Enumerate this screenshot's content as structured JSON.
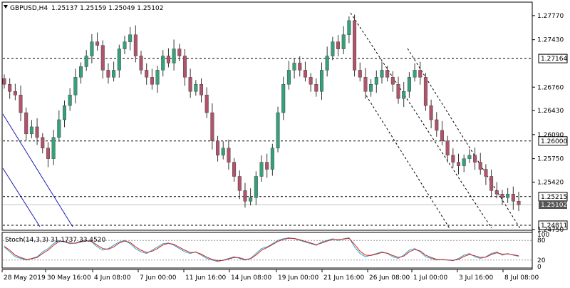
{
  "header": {
    "symbol_timeframe": "GBPUSD,H4",
    "ohlc": "1.25137 1.25159 1.25049 1.25102"
  },
  "stoch": {
    "label": "Stoch(14,3,3) 31.1737 33.4520"
  },
  "colors": {
    "bull": "#36a07a",
    "bear": "#b0546a",
    "wick": "#333333",
    "bgLine": "#000000",
    "stochMain": "#2aa7c9",
    "stochSignal": "#d62020",
    "channel": "#1b1fb3"
  },
  "chart_data": {
    "type": "candlestick",
    "ylim": [
      1.2475,
      1.2795
    ],
    "y_ticks": [
      "1.27770",
      "1.27430",
      "1.26760",
      "1.26430",
      "1.26090",
      "1.25750",
      "1.25420",
      "1.24750"
    ],
    "x_ticks": [
      "28 May 2019",
      "30 May 16:00",
      "4 Jun 08:00",
      "7 Jun 00:00",
      "11 Jun 16:00",
      "14 Jun 08:00",
      "19 Jun 00:00",
      "21 Jun 16:00",
      "26 Jun 08:00",
      "1 Jul 00:00",
      "3 Jul 16:00",
      "8 Jul 08:00"
    ],
    "horizontal_levels": [
      {
        "value": 1.27164,
        "label": "1.27164"
      },
      {
        "value": 1.26,
        "label": "1.26000"
      },
      {
        "value": 1.25215,
        "label": "1.25215"
      },
      {
        "value": 1.24811,
        "label": "1.24811"
      }
    ],
    "current_price": {
      "value": 1.25102,
      "label": "1.25102"
    },
    "stoch_levels": {
      "upper": 80,
      "lower": 20,
      "upper_label": "80",
      "lower_label": "20",
      "top_label": "100",
      "bottom_label": "0"
    },
    "closes": [
      1.268,
      1.267,
      1.2665,
      1.264,
      1.261,
      1.262,
      1.2605,
      1.259,
      1.2575,
      1.2605,
      1.263,
      1.265,
      1.2665,
      1.269,
      1.2705,
      1.272,
      1.274,
      1.2735,
      1.27,
      1.269,
      1.27,
      1.273,
      1.274,
      1.275,
      1.272,
      1.27,
      1.269,
      1.268,
      1.27,
      1.272,
      1.271,
      1.273,
      1.272,
      1.269,
      1.267,
      1.268,
      1.2665,
      1.264,
      1.26,
      1.258,
      1.259,
      1.257,
      1.255,
      1.253,
      1.2515,
      1.252,
      1.255,
      1.257,
      1.256,
      1.259,
      1.264,
      1.268,
      1.27,
      1.271,
      1.27,
      1.269,
      1.268,
      1.267,
      1.27,
      1.272,
      1.274,
      1.273,
      1.275,
      1.277,
      1.27,
      1.269,
      1.267,
      1.268,
      1.269,
      1.27,
      1.269,
      1.268,
      1.266,
      1.267,
      1.269,
      1.27,
      1.269,
      1.265,
      1.263,
      1.2615,
      1.26,
      1.258,
      1.257,
      1.2565,
      1.2575,
      1.258,
      1.257,
      1.256,
      1.255,
      1.253,
      1.2525,
      1.252,
      1.2525,
      1.2515,
      1.251
    ],
    "stoch_main": [
      60,
      45,
      30,
      25,
      20,
      25,
      30,
      45,
      55,
      70,
      80,
      75,
      70,
      72,
      78,
      80,
      75,
      60,
      50,
      55,
      65,
      75,
      80,
      70,
      55,
      45,
      40,
      50,
      60,
      70,
      72,
      65,
      55,
      45,
      40,
      45,
      35,
      25,
      20,
      15,
      20,
      25,
      30,
      25,
      20,
      25,
      40,
      55,
      60,
      70,
      80,
      85,
      88,
      85,
      80,
      75,
      70,
      65,
      75,
      80,
      85,
      80,
      85,
      88,
      60,
      40,
      30,
      35,
      40,
      45,
      40,
      30,
      25,
      35,
      50,
      55,
      45,
      30,
      25,
      20,
      22,
      20,
      18,
      25,
      35,
      40,
      30,
      25,
      30,
      40,
      45,
      35,
      40,
      35,
      31
    ],
    "stoch_signal": [
      62,
      50,
      35,
      28,
      22,
      24,
      28,
      40,
      50,
      65,
      76,
      77,
      72,
      71,
      75,
      79,
      77,
      65,
      55,
      53,
      60,
      72,
      78,
      74,
      60,
      50,
      43,
      47,
      55,
      66,
      71,
      68,
      59,
      50,
      43,
      44,
      38,
      29,
      22,
      18,
      19,
      23,
      28,
      27,
      22,
      24,
      35,
      50,
      58,
      67,
      77,
      83,
      86,
      86,
      82,
      77,
      72,
      67,
      72,
      78,
      83,
      82,
      84,
      86,
      68,
      47,
      35,
      34,
      38,
      43,
      41,
      34,
      28,
      32,
      45,
      52,
      48,
      35,
      28,
      22,
      21,
      20,
      19,
      22,
      31,
      37,
      33,
      28,
      29,
      37,
      42,
      38,
      39,
      36,
      33
    ]
  }
}
